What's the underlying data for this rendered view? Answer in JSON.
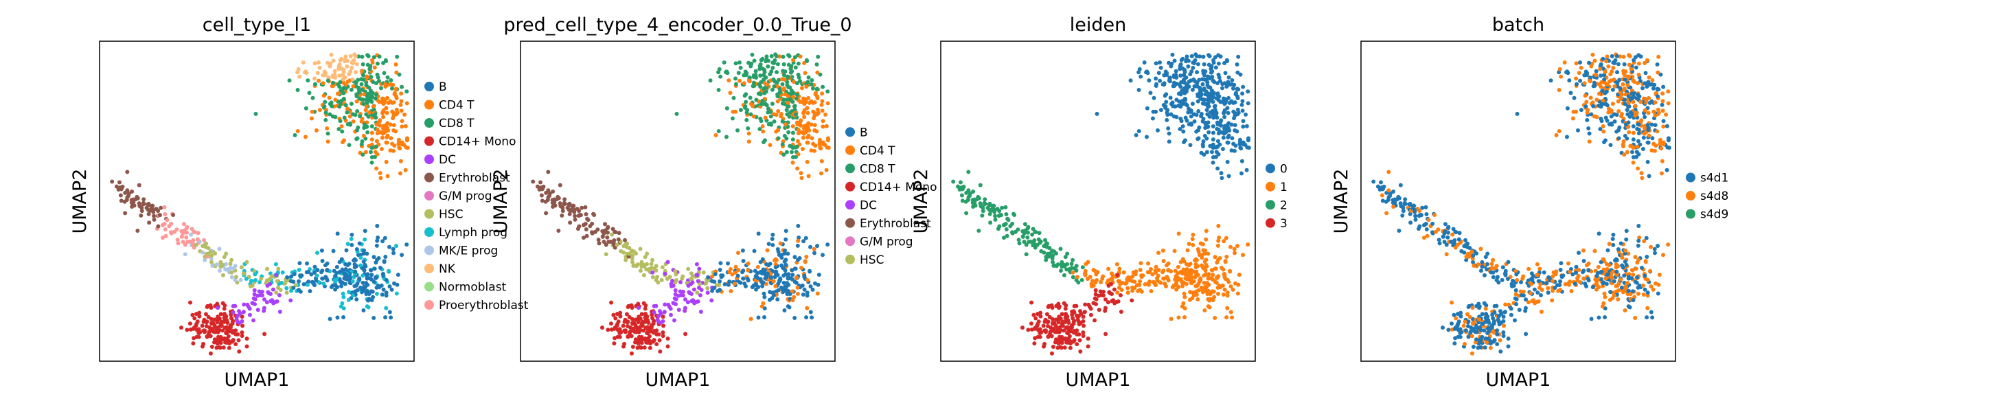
{
  "chart_data": [
    {
      "type": "scatter",
      "title": "cell_type_l1",
      "xlabel": "UMAP1",
      "ylabel": "UMAP2",
      "grid": false,
      "legend_placement": "right",
      "legend": [
        {
          "name": "B",
          "color": "#1f77b4"
        },
        {
          "name": "CD4 T",
          "color": "#ff7f0e"
        },
        {
          "name": "CD8 T",
          "color": "#279e68"
        },
        {
          "name": "CD14+ Mono",
          "color": "#d62728"
        },
        {
          "name": "DC",
          "color": "#aa40fc"
        },
        {
          "name": "Erythroblast",
          "color": "#8c564b"
        },
        {
          "name": "G/M prog",
          "color": "#e377c2"
        },
        {
          "name": "HSC",
          "color": "#b5bd61"
        },
        {
          "name": "Lymph prog",
          "color": "#17becf"
        },
        {
          "name": "MK/E prog",
          "color": "#aec7e8"
        },
        {
          "name": "NK",
          "color": "#ffbb78"
        },
        {
          "name": "Normoblast",
          "color": "#98df8a"
        },
        {
          "name": "Proerythroblast",
          "color": "#ff9896"
        }
      ]
    },
    {
      "type": "scatter",
      "title": "pred_cell_type_4_encoder_0.0_True_0",
      "xlabel": "UMAP1",
      "ylabel": "UMAP2",
      "grid": false,
      "legend_placement": "right",
      "legend": [
        {
          "name": "B",
          "color": "#1f77b4"
        },
        {
          "name": "CD4 T",
          "color": "#ff7f0e"
        },
        {
          "name": "CD8 T",
          "color": "#279e68"
        },
        {
          "name": "CD14+ Mono",
          "color": "#d62728"
        },
        {
          "name": "DC",
          "color": "#aa40fc"
        },
        {
          "name": "Erythroblast",
          "color": "#8c564b"
        },
        {
          "name": "G/M prog",
          "color": "#e377c2"
        },
        {
          "name": "HSC",
          "color": "#b5bd61"
        }
      ]
    },
    {
      "type": "scatter",
      "title": "leiden",
      "xlabel": "UMAP1",
      "ylabel": "UMAP2",
      "grid": false,
      "legend_placement": "right",
      "legend": [
        {
          "name": "0",
          "color": "#1f77b4"
        },
        {
          "name": "1",
          "color": "#ff7f0e"
        },
        {
          "name": "2",
          "color": "#279e68"
        },
        {
          "name": "3",
          "color": "#d62728"
        }
      ]
    },
    {
      "type": "scatter",
      "title": "batch",
      "xlabel": "UMAP1",
      "ylabel": "UMAP2",
      "grid": false,
      "legend_placement": "right",
      "legend": [
        {
          "name": "s4d1",
          "color": "#1f77b4"
        },
        {
          "name": "s4d8",
          "color": "#ff7f0e"
        },
        {
          "name": "s4d9",
          "color": "#279e68"
        }
      ]
    }
  ]
}
